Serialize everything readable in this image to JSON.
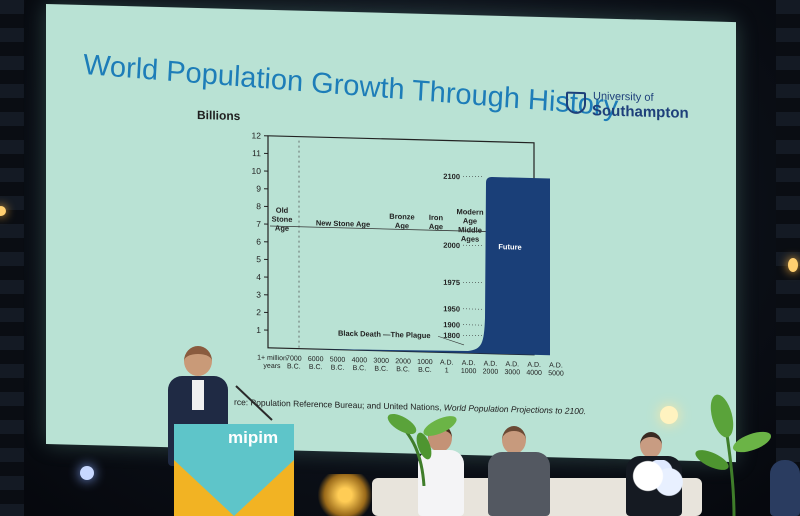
{
  "slide": {
    "title": "World Population Growth Through History",
    "logo_small": "University of",
    "logo_big": "Southampton",
    "y_axis_unit": "Billions",
    "source_prefix": "rce: Population Reference Bureau; and United Nations, ",
    "source_italic": "World Population Projections to 2100.",
    "future_label": "Future",
    "event_label": "Black Death —The Plague"
  },
  "chart_data": {
    "type": "area",
    "title": "World Population Growth Through History",
    "ylabel": "Billions",
    "ylim": [
      0,
      12
    ],
    "y_ticks": [
      "1",
      "2",
      "3",
      "4",
      "5",
      "6",
      "7",
      "8",
      "9",
      "10",
      "11",
      "12"
    ],
    "x_ticks": [
      [
        "1+ million",
        "years"
      ],
      [
        "7000",
        "B.C."
      ],
      [
        "6000",
        "B.C."
      ],
      [
        "5000",
        "B.C."
      ],
      [
        "4000",
        "B.C."
      ],
      [
        "3000",
        "B.C."
      ],
      [
        "2000",
        "B.C."
      ],
      [
        "1000",
        "B.C."
      ],
      [
        "A.D.",
        "1"
      ],
      [
        "A.D.",
        "1000"
      ],
      [
        "A.D.",
        "2000"
      ],
      [
        "A.D.",
        "3000"
      ],
      [
        "A.D.",
        "4000"
      ],
      [
        "A.D.",
        "5000"
      ]
    ],
    "eras": [
      {
        "label": [
          "Old",
          "Stone",
          "Age"
        ]
      },
      {
        "label": [
          "New Stone Age"
        ]
      },
      {
        "label": [
          "Bronze",
          "Age"
        ]
      },
      {
        "label": [
          "Iron",
          "Age"
        ]
      },
      {
        "label": [
          "Modern",
          "Age",
          "Middle",
          "Ages"
        ]
      }
    ],
    "year_markers": [
      {
        "year": "1800",
        "value": 1.0
      },
      {
        "year": "1900",
        "value": 1.6
      },
      {
        "year": "1950",
        "value": 2.5
      },
      {
        "year": "1975",
        "value": 4.0
      },
      {
        "year": "2000",
        "value": 6.1
      },
      {
        "year": "2100",
        "value": 10.0
      }
    ],
    "series": [
      {
        "values": [
          {
            "x": "7000 B.C.",
            "y": 0.01
          },
          {
            "x": "1000 B.C.",
            "y": 0.05
          },
          {
            "x": "A.D. 1",
            "y": 0.3
          },
          {
            "x": "A.D. 1000",
            "y": 0.31
          },
          {
            "x": "1800",
            "y": 1.0
          },
          {
            "x": "1900",
            "y": 1.6
          },
          {
            "x": "1950",
            "y": 2.5
          },
          {
            "x": "1975",
            "y": 4.0
          },
          {
            "x": "2000",
            "y": 6.1
          },
          {
            "x": "2100",
            "y": 10.0
          },
          {
            "x": "A.D. 5000",
            "y": 10.0
          }
        ]
      }
    ],
    "colors": {
      "future_fill": "#1a3f78",
      "axis": "#222222"
    }
  },
  "event": {
    "brand": "mipim"
  },
  "colors": {
    "screen_bg": "#b9e2d4",
    "title_blue": "#1d7db8",
    "podium_teal": "#5ec5c9",
    "podium_yellow": "#f2b323"
  }
}
